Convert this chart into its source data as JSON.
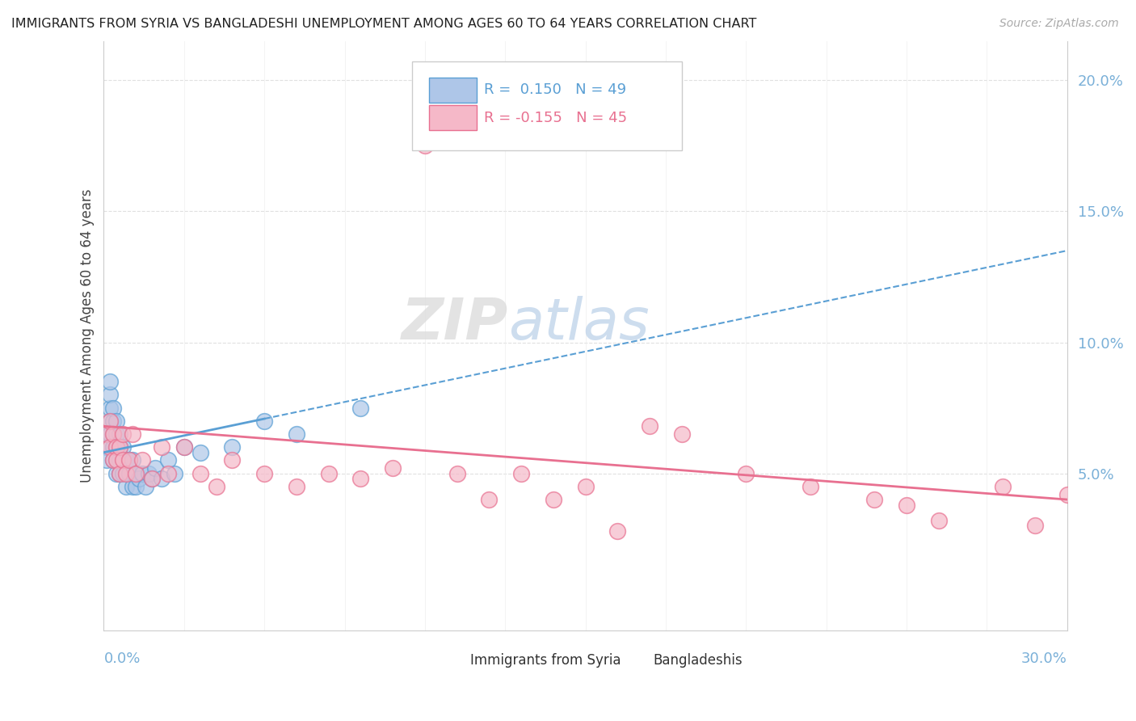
{
  "title": "IMMIGRANTS FROM SYRIA VS BANGLADESHI UNEMPLOYMENT AMONG AGES 60 TO 64 YEARS CORRELATION CHART",
  "source": "Source: ZipAtlas.com",
  "ylabel": "Unemployment Among Ages 60 to 64 years",
  "xmin": 0.0,
  "xmax": 0.3,
  "ymin": -0.01,
  "ymax": 0.215,
  "ytick_vals": [
    0.05,
    0.1,
    0.15,
    0.2
  ],
  "ytick_labels": [
    "5.0%",
    "10.0%",
    "15.0%",
    "20.0%"
  ],
  "color_syria": "#aec6e8",
  "color_bang": "#f5b8c8",
  "color_syria_edge": "#5a9fd4",
  "color_bang_edge": "#e87090",
  "color_syria_line": "#5a9fd4",
  "color_bang_line": "#e87090",
  "watermark_color": "#d0dff0",
  "grid_color": "#e0e0e0",
  "tick_color": "#7ab0d8",
  "syria_x": [
    0.001,
    0.001,
    0.001,
    0.002,
    0.002,
    0.002,
    0.002,
    0.002,
    0.003,
    0.003,
    0.003,
    0.003,
    0.003,
    0.004,
    0.004,
    0.004,
    0.004,
    0.004,
    0.005,
    0.005,
    0.005,
    0.005,
    0.006,
    0.006,
    0.006,
    0.007,
    0.007,
    0.007,
    0.008,
    0.008,
    0.009,
    0.009,
    0.01,
    0.01,
    0.011,
    0.012,
    0.013,
    0.014,
    0.015,
    0.016,
    0.018,
    0.02,
    0.022,
    0.025,
    0.03,
    0.04,
    0.05,
    0.06,
    0.08
  ],
  "syria_y": [
    0.06,
    0.065,
    0.055,
    0.075,
    0.07,
    0.065,
    0.08,
    0.085,
    0.06,
    0.065,
    0.07,
    0.075,
    0.055,
    0.055,
    0.06,
    0.065,
    0.07,
    0.05,
    0.055,
    0.06,
    0.05,
    0.065,
    0.05,
    0.055,
    0.06,
    0.05,
    0.055,
    0.045,
    0.05,
    0.055,
    0.045,
    0.055,
    0.045,
    0.05,
    0.048,
    0.05,
    0.045,
    0.05,
    0.048,
    0.052,
    0.048,
    0.055,
    0.05,
    0.06,
    0.058,
    0.06,
    0.07,
    0.065,
    0.075
  ],
  "bang_x": [
    0.001,
    0.002,
    0.002,
    0.003,
    0.003,
    0.004,
    0.004,
    0.005,
    0.005,
    0.006,
    0.006,
    0.007,
    0.008,
    0.009,
    0.01,
    0.012,
    0.015,
    0.018,
    0.02,
    0.025,
    0.03,
    0.035,
    0.04,
    0.05,
    0.06,
    0.07,
    0.08,
    0.09,
    0.1,
    0.11,
    0.13,
    0.15,
    0.16,
    0.18,
    0.2,
    0.22,
    0.24,
    0.26,
    0.28,
    0.3,
    0.17,
    0.12,
    0.14,
    0.25,
    0.29
  ],
  "bang_y": [
    0.065,
    0.06,
    0.07,
    0.065,
    0.055,
    0.06,
    0.055,
    0.06,
    0.05,
    0.055,
    0.065,
    0.05,
    0.055,
    0.065,
    0.05,
    0.055,
    0.048,
    0.06,
    0.05,
    0.06,
    0.05,
    0.045,
    0.055,
    0.05,
    0.045,
    0.05,
    0.048,
    0.052,
    0.175,
    0.05,
    0.05,
    0.045,
    0.028,
    0.065,
    0.05,
    0.045,
    0.04,
    0.032,
    0.045,
    0.042,
    0.068,
    0.04,
    0.04,
    0.038,
    0.03
  ],
  "syria_line_x0": 0.0,
  "syria_line_y0": 0.058,
  "syria_line_x1": 0.3,
  "syria_line_y1": 0.135,
  "bang_line_x0": 0.0,
  "bang_line_y0": 0.068,
  "bang_line_x1": 0.3,
  "bang_line_y1": 0.04
}
